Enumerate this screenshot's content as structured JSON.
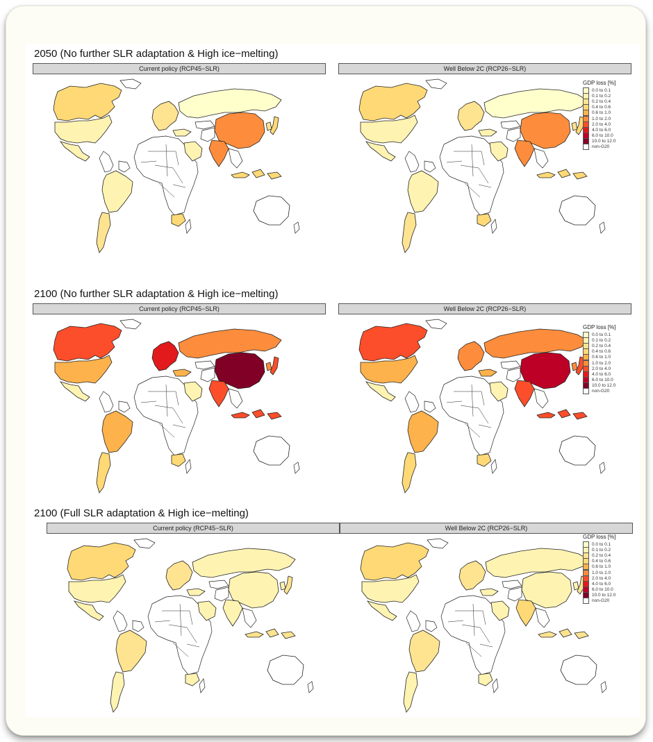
{
  "colors": {
    "bin_colors": [
      "#ffffcc",
      "#fff3b2",
      "#fee391",
      "#fed976",
      "#feb24c",
      "#fd8d3c",
      "#fc4e2a",
      "#e31a1c",
      "#bd0026",
      "#800026",
      "#ffffff"
    ],
    "border": "#222222",
    "bar_fill": "#d7d7d7",
    "frame_bg": "#fdfdf6"
  },
  "legend": {
    "title": "GDP loss [%]",
    "labels": [
      "0.0 to 0.1",
      "0.1 to 0.2",
      "0.2 to 0.4",
      "0.4 to 0.6",
      "0.6 to 1.0",
      "1.0 to 2.0",
      "2.0 to 4.0",
      "4.0 to 6.0",
      "6.0 to 10.0",
      "10.0 to 12.0",
      "non-G20"
    ]
  },
  "sections": [
    {
      "title": "2050 (No further SLR adaptation & High ice−melting)",
      "panels": [
        {
          "label": "Current policy (RCP45−SLR)",
          "bins": {
            "usa": 1,
            "canada": 3,
            "mexico": 1,
            "brazil": 1,
            "argentina": 2,
            "europe": 2,
            "russia": 0,
            "china": 5,
            "india": 5,
            "indonesia": 3,
            "japan": 3,
            "korea": 2,
            "saudi": 1,
            "turkey": 1,
            "south_africa": 3,
            "australia": 10
          }
        },
        {
          "label": "Well Below 2C (RCP26−SLR)",
          "bins": {
            "usa": 1,
            "canada": 3,
            "mexico": 1,
            "brazil": 1,
            "argentina": 2,
            "europe": 2,
            "russia": 0,
            "china": 5,
            "india": 5,
            "indonesia": 3,
            "japan": 3,
            "korea": 2,
            "saudi": 1,
            "turkey": 1,
            "south_africa": 3,
            "australia": 10
          }
        }
      ]
    },
    {
      "title": "2100 (No further SLR adaptation & High ice−melting)",
      "panels": [
        {
          "label": "Current policy (RCP45−SLR)",
          "bins": {
            "usa": 4,
            "canada": 6,
            "mexico": 1,
            "brazil": 4,
            "argentina": 3,
            "europe": 7,
            "russia": 5,
            "china": 9,
            "india": 6,
            "indonesia": 6,
            "japan": 6,
            "korea": 5,
            "saudi": 1,
            "turkey": 4,
            "south_africa": 3,
            "australia": 10
          }
        },
        {
          "label": "Well Below 2C (RCP26−SLR)",
          "bins": {
            "usa": 4,
            "canada": 6,
            "mexico": 1,
            "brazil": 4,
            "argentina": 3,
            "europe": 5,
            "russia": 5,
            "china": 8,
            "india": 6,
            "indonesia": 6,
            "japan": 6,
            "korea": 5,
            "saudi": 1,
            "turkey": 4,
            "south_africa": 3,
            "australia": 10
          }
        }
      ]
    },
    {
      "title": "2100 (Full SLR adaptation & High ice−melting)",
      "panels": [
        {
          "label": "Current policy (RCP45−SLR)",
          "bins": {
            "usa": 1,
            "canada": 3,
            "mexico": 1,
            "brazil": 2,
            "argentina": 1,
            "europe": 2,
            "russia": 1,
            "china": 1,
            "india": 1,
            "indonesia": 2,
            "japan": 2,
            "korea": 1,
            "saudi": 1,
            "turkey": 1,
            "south_africa": 1,
            "australia": 10
          }
        },
        {
          "label": "Well Below 2C (RCP26−SLR)",
          "bins": {
            "usa": 1,
            "canada": 3,
            "mexico": 1,
            "brazil": 2,
            "argentina": 1,
            "europe": 2,
            "russia": 1,
            "china": 1,
            "india": 3,
            "indonesia": 2,
            "japan": 2,
            "korea": 1,
            "saudi": 1,
            "turkey": 1,
            "south_africa": 1,
            "australia": 10
          }
        }
      ]
    }
  ]
}
